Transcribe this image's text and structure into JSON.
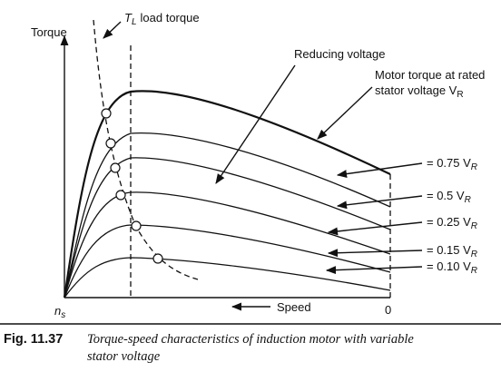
{
  "axes": {
    "y_label": "Torque",
    "x_label": "Speed",
    "origin_label_main": "n",
    "origin_label_sub": "s",
    "x_end_label": "0"
  },
  "load_torque": {
    "symbol_main": "T",
    "symbol_sub": "L",
    "text": "load torque"
  },
  "annotations": {
    "reducing_voltage": "Reducing voltage",
    "rated_line1": "Motor torque at rated",
    "rated_line2": "stator voltage V",
    "rated_sub": "R"
  },
  "curves": [
    {
      "name": "rated",
      "label_main": ""
    },
    {
      "name": "v075",
      "label_main": "= 0.75 V",
      "label_sub": "R"
    },
    {
      "name": "v050",
      "label_main": "= 0.5 V",
      "label_sub": "R"
    },
    {
      "name": "v025",
      "label_main": "= 0.25 V",
      "label_sub": "R"
    },
    {
      "name": "v015",
      "label_main": "= 0.15 V",
      "label_sub": "R"
    },
    {
      "name": "v010",
      "label_main": "= 0.10 V",
      "label_sub": "R"
    }
  ],
  "caption": {
    "fig_number": "Fig. 11.37",
    "line1": "Torque-speed characteristics of induction motor with variable",
    "line2": "stator voltage"
  }
}
